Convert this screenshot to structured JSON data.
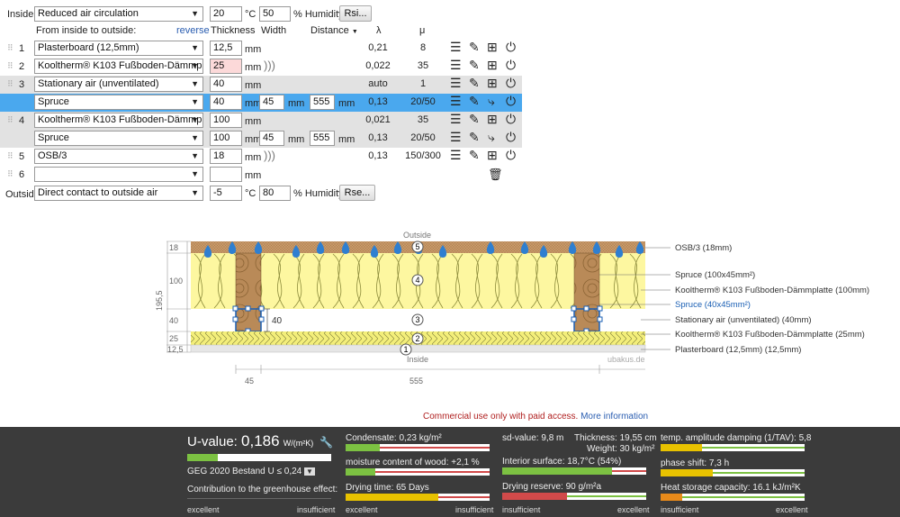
{
  "inside": {
    "label": "Inside:",
    "condition": "Reduced air circulation",
    "temp": "20",
    "temp_unit": "°C",
    "humidity": "50",
    "humidity_unit": "% Humidity",
    "rsi_button": "Rsi..."
  },
  "columns": {
    "from_inside": "From inside to outside:",
    "reverse": "reverse",
    "thickness": "Thickness",
    "width": "Width",
    "distance": "Distance",
    "lambda": "λ",
    "mu": "μ",
    "mm": "mm"
  },
  "layers": [
    {
      "num": "1",
      "material": "Plasterboard (12,5mm)",
      "thickness": "12,5",
      "width": "",
      "distance": "",
      "lambda": "0,21",
      "mu": "8"
    },
    {
      "num": "2",
      "material": "Kooltherm® K103 Fußboden-Dämmp",
      "thickness": "25",
      "width": "",
      "distance": "",
      "lambda": "0,022",
      "mu": "35"
    },
    {
      "num": "3",
      "material": "Stationary air (unventilated)",
      "thickness": "40",
      "width": "",
      "distance": "",
      "lambda": "auto",
      "mu": "1"
    },
    {
      "num": "",
      "material": "Spruce",
      "thickness": "40",
      "width": "45",
      "distance": "555",
      "lambda": "0,13",
      "mu": "20/50"
    },
    {
      "num": "4",
      "material": "Kooltherm® K103 Fußboden-Dämmp",
      "thickness": "100",
      "width": "",
      "distance": "",
      "lambda": "0,021",
      "mu": "35"
    },
    {
      "num": "",
      "material": "Spruce",
      "thickness": "100",
      "width": "45",
      "distance": "555",
      "lambda": "0,13",
      "mu": "20/50"
    },
    {
      "num": "5",
      "material": "OSB/3",
      "thickness": "18",
      "width": "",
      "distance": "",
      "lambda": "0,13",
      "mu": "150/300"
    },
    {
      "num": "6",
      "material": "",
      "thickness": "",
      "width": "",
      "distance": "",
      "lambda": "",
      "mu": ""
    }
  ],
  "outside": {
    "label": "Outside",
    "condition": "Direct contact to outside air",
    "temp": "-5",
    "temp_unit": "°C",
    "humidity": "80",
    "humidity_unit": "% Humidity",
    "rse_button": "Rse..."
  },
  "diagram": {
    "outside_label": "Outside",
    "inside_label": "Inside",
    "watermark": "ubakus.de",
    "left_dims": [
      "18",
      "100",
      "40",
      "25",
      "12,5"
    ],
    "total_dim": "195,5",
    "batten_dim": "40",
    "bottom_dims": [
      "45",
      "555"
    ],
    "circle_nums": [
      "5",
      "4",
      "3",
      "2",
      "1"
    ],
    "legend": [
      {
        "text": "OSB/3 (18mm)",
        "color": "#333333"
      },
      {
        "text": "Spruce (100x45mm²)",
        "color": "#333333"
      },
      {
        "text": "Kooltherm® K103 Fußboden-Dämmplatte (100mm)",
        "color": "#333333"
      },
      {
        "text": "Spruce (40x45mm²)",
        "color": "#1a5fb4"
      },
      {
        "text": "Stationary air (unventilated) (40mm)",
        "color": "#333333"
      },
      {
        "text": "Kooltherm® K103 Fußboden-Dämmplatte (25mm)",
        "color": "#333333"
      },
      {
        "text": "Plasterboard (12,5mm) (12,5mm)",
        "color": "#333333"
      }
    ]
  },
  "notice": {
    "text": "Commercial use only with paid access.",
    "link": "More information"
  },
  "results": {
    "uvalue_label": "U-value:",
    "uvalue": "0,186",
    "uvalue_unit": "W/(m²K)",
    "geg": "GEG 2020 Bestand U ≤ 0,24",
    "greenhouse": "Contribution to the greenhouse effect:",
    "excellent": "excellent",
    "insufficient": "insufficient",
    "condensate": "Condensate: 0,23 kg/m²",
    "moisture": "moisture content of wood: +2,1 %",
    "drying_time": "Drying time: 65 Days",
    "sd_value": "sd-value: 9,8 m",
    "thickness": "Thickness: 19,55 cm",
    "weight": "Weight: 30 kg/m²",
    "interior_surface": "Interior surface: 18,7°C (54%)",
    "drying_reserve": "Drying reserve: 90 g/m²a",
    "temp_amp": "temp. amplitude damping (1/TAV): 5,8",
    "phase_shift": "phase shift: 7,3 h",
    "heat_storage": "Heat storage capacity: 16.1 kJ/m²K",
    "colors": {
      "green": "#7cc142",
      "yellow": "#e8c200",
      "red": "#d14a4a",
      "orange": "#e88a1a"
    }
  }
}
